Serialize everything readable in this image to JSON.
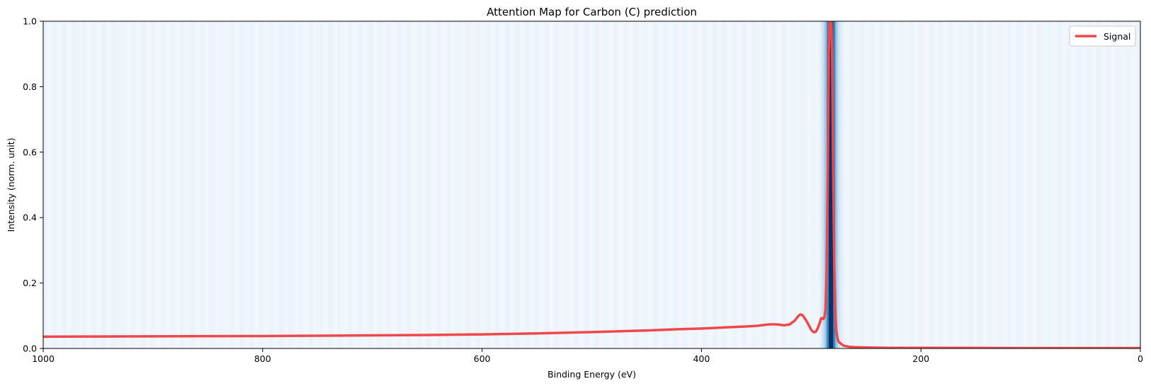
{
  "chart_data": {
    "type": "line",
    "title": "Attention Map for Carbon (C) prediction",
    "xlabel": "Binding Energy (eV)",
    "ylabel": "Intensity (norm. unit)",
    "xlim": [
      1000,
      0
    ],
    "ylim": [
      0,
      1.0
    ],
    "x_reversed": true,
    "xticks": [
      1000,
      800,
      600,
      400,
      200,
      0
    ],
    "xtick_labels": [
      "1000",
      "800",
      "600",
      "400",
      "200",
      "0"
    ],
    "yticks": [
      0.0,
      0.2,
      0.4,
      0.6,
      0.8,
      1.0
    ],
    "ytick_labels": [
      "0.0",
      "0.2",
      "0.4",
      "0.6",
      "0.8",
      "1.0"
    ],
    "grid": false,
    "legend": {
      "position": "top-right",
      "entries": [
        "Signal"
      ]
    },
    "background": {
      "kind": "attention-heatmap",
      "colormap": "Blues",
      "peak_center_eV": 282,
      "baseline_color": "#f2f7fd",
      "peak_color": "#08306b"
    },
    "series": [
      {
        "name": "Signal",
        "color": "#f0484a",
        "x": [
          1000,
          950,
          900,
          850,
          800,
          750,
          700,
          650,
          600,
          550,
          500,
          450,
          420,
          400,
          380,
          360,
          350,
          340,
          335,
          330,
          325,
          320,
          315,
          312,
          310,
          308,
          305,
          302,
          300,
          298,
          296,
          294,
          292,
          291,
          290,
          289,
          288,
          287,
          286,
          285,
          284,
          283,
          282,
          281,
          280,
          279,
          278,
          277,
          276,
          275,
          272,
          270,
          265,
          260,
          250,
          230,
          200,
          150,
          100,
          50,
          0
        ],
        "y": [
          0.036,
          0.0365,
          0.037,
          0.0375,
          0.038,
          0.039,
          0.04,
          0.041,
          0.043,
          0.046,
          0.05,
          0.055,
          0.059,
          0.061,
          0.064,
          0.067,
          0.069,
          0.073,
          0.074,
          0.073,
          0.071,
          0.073,
          0.085,
          0.098,
          0.104,
          0.102,
          0.088,
          0.07,
          0.057,
          0.05,
          0.05,
          0.062,
          0.08,
          0.092,
          0.093,
          0.09,
          0.094,
          0.12,
          0.22,
          0.5,
          0.9,
          1.05,
          1.05,
          0.9,
          0.55,
          0.25,
          0.1,
          0.05,
          0.03,
          0.02,
          0.012,
          0.008,
          0.005,
          0.004,
          0.003,
          0.002,
          0.002,
          0.0015,
          0.0012,
          0.001,
          0.001
        ]
      }
    ]
  }
}
